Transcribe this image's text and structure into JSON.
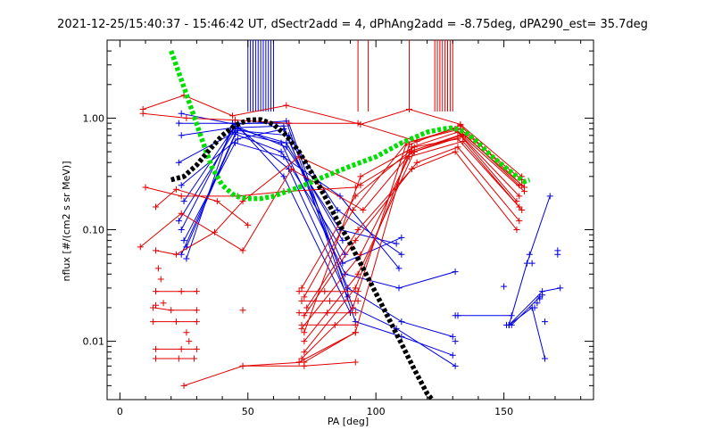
{
  "chart_data": {
    "type": "scatter",
    "title": "2021-12-25/15:40:37 - 15:46:42 UT, dSectr2add = 4, dPhAng2add = -8.75deg, dPA290_est=  35.7deg",
    "xlabel": "PA [deg]",
    "ylabel": "nflux [#/(cm2 s sr MeV)]",
    "xlim": [
      -5,
      185
    ],
    "ylim": [
      0.003,
      5.0
    ],
    "yscale": "log",
    "grid": false,
    "xticks": [
      0,
      50,
      100,
      150
    ],
    "xtick_labels": [
      "0",
      "50",
      "100",
      "150"
    ],
    "yticks": [
      0.01,
      0.1,
      1.0
    ],
    "ytick_labels": [
      "0.01",
      "0.10",
      "1.00"
    ],
    "colors": {
      "red": "#e00000",
      "blue": "#0000e0",
      "green": "#00e000",
      "black": "#000000"
    },
    "blue_markers": [
      50,
      51,
      52,
      53,
      54,
      55,
      56,
      57,
      58,
      59,
      60
    ],
    "red_markers": [
      93,
      97,
      113,
      123,
      124,
      125,
      126,
      127,
      128,
      129,
      130
    ],
    "series": [
      {
        "color": "blue",
        "style": "line+plus",
        "lines": [
          {
            "x": [
              24,
              45,
              65,
              92,
              110,
              130
            ],
            "y": [
              1.1,
              0.88,
              0.94,
              0.015,
              0.011,
              0.0075
            ]
          },
          {
            "x": [
              23,
              46,
              66,
              91,
              108,
              131
            ],
            "y": [
              0.9,
              0.9,
              0.9,
              0.02,
              0.013,
              0.006
            ]
          },
          {
            "x": [
              24,
              44,
              64,
              89,
              110,
              130
            ],
            "y": [
              0.7,
              0.82,
              0.85,
              0.03,
              0.015,
              0.011
            ]
          },
          {
            "x": [
              23,
              45,
              63,
              88,
              109,
              131
            ],
            "y": [
              0.4,
              0.75,
              0.6,
              0.04,
              0.03,
              0.042
            ]
          },
          {
            "x": [
              24,
              46,
              64,
              87,
              110
            ],
            "y": [
              0.25,
              0.65,
              0.8,
              0.05,
              0.085
            ]
          },
          {
            "x": [
              25,
              45,
              65,
              86,
              108
            ],
            "y": [
              0.18,
              0.85,
              0.55,
              0.1,
              0.075
            ]
          },
          {
            "x": [
              24,
              44,
              66,
              85,
              110
            ],
            "y": [
              0.1,
              0.78,
              0.7,
              0.15,
              0.06
            ]
          },
          {
            "x": [
              25,
              45,
              64,
              86,
              109
            ],
            "y": [
              0.08,
              0.6,
              0.45,
              0.2,
              0.045
            ]
          },
          {
            "x": [
              26,
              46,
              65,
              87
            ],
            "y": [
              0.07,
              0.8,
              0.6,
              0.08
            ]
          },
          {
            "x": [
              24,
              45,
              63,
              88
            ],
            "y": [
              0.06,
              0.72,
              0.5,
              0.06
            ]
          },
          {
            "x": [
              26,
              44,
              66,
              89
            ],
            "y": [
              0.055,
              0.9,
              0.35,
              0.025
            ]
          },
          {
            "x": [
              23,
              46,
              64,
              90
            ],
            "y": [
              0.12,
              0.85,
              0.3,
              0.018
            ]
          },
          {
            "x": [
              152,
              165,
              172
            ],
            "y": [
              0.014,
              0.028,
              0.03
            ]
          },
          {
            "x": [
              152,
              161,
              166
            ],
            "y": [
              0.014,
              0.02,
              0.007
            ]
          },
          {
            "x": [
              152,
              159,
              168
            ],
            "y": [
              0.014,
              0.05,
              0.2
            ]
          },
          {
            "x": [
              132,
              153
            ],
            "y": [
              0.017,
              0.017
            ]
          },
          {
            "x": [
              153,
              164
            ],
            "y": [
              0.014,
              0.025
            ]
          }
        ],
        "points": [
          {
            "x": [
              150,
              151,
              160,
              161,
              162,
              163,
              164,
              165,
              166,
              171,
              171,
              131,
              131
            ],
            "y": [
              0.031,
              0.014,
              0.06,
              0.05,
              0.02,
              0.022,
              0.024,
              0.026,
              0.015,
              0.06,
              0.065,
              0.01,
              0.017
            ]
          }
        ]
      },
      {
        "color": "red",
        "style": "line+plus",
        "lines": [
          {
            "x": [
              9,
              25,
              44,
              65,
              94,
              113,
              133,
              157
            ],
            "y": [
              1.2,
              1.6,
              1.05,
              1.3,
              0.88,
              1.2,
              0.88,
              0.3
            ]
          },
          {
            "x": [
              10,
              24,
              46,
              64,
              92,
              115,
              135,
              156
            ],
            "y": [
              0.24,
              0.2,
              0.2,
              0.22,
              0.24,
              0.5,
              0.7,
              0.25
            ]
          },
          {
            "x": [
              9,
              26,
              45,
              66,
              93,
              116
            ],
            "y": [
              1.1,
              1.0,
              0.96,
              0.9,
              0.9,
              0.62
            ]
          },
          {
            "x": [
              8,
              24,
              48,
              67,
              95,
              114
            ],
            "y": [
              0.07,
              0.14,
              0.065,
              0.35,
              0.15,
              0.5
            ]
          },
          {
            "x": [
              14,
              22,
              37,
              48,
              70,
              94
            ],
            "y": [
              0.065,
              0.06,
              0.095,
              0.18,
              0.45,
              0.25
            ]
          },
          {
            "x": [
              25,
              48,
              72,
              92
            ],
            "y": [
              0.004,
              0.006,
              0.0065,
              0.012
            ]
          },
          {
            "x": [
              48,
              72,
              92
            ],
            "y": [
              0.006,
              0.006,
              0.0065
            ]
          },
          {
            "x": [
              14,
              22,
              38,
              50
            ],
            "y": [
              0.16,
              0.23,
              0.18,
              0.11
            ]
          },
          {
            "x": [
              70,
              92,
              113,
              133,
              157
            ],
            "y": [
              0.0065,
              0.012,
              0.58,
              0.86,
              0.25
            ]
          },
          {
            "x": [
              71,
              91,
              112,
              131,
              158
            ],
            "y": [
              0.007,
              0.02,
              0.6,
              0.8,
              0.22
            ]
          },
          {
            "x": [
              72,
              92,
              114,
              132,
              156
            ],
            "y": [
              0.008,
              0.03,
              0.55,
              0.75,
              0.2
            ]
          },
          {
            "x": [
              72,
              93,
              115,
              133,
              155
            ],
            "y": [
              0.01,
              0.04,
              0.5,
              0.7,
              0.18
            ]
          },
          {
            "x": [
              71,
              94,
              113,
              134,
              157
            ],
            "y": [
              0.013,
              0.06,
              0.45,
              0.62,
              0.15
            ]
          },
          {
            "x": [
              72,
              92,
              116,
              132,
              156
            ],
            "y": [
              0.017,
              0.08,
              0.4,
              0.55,
              0.12
            ]
          },
          {
            "x": [
              73,
              93,
              114,
              131,
              155
            ],
            "y": [
              0.02,
              0.1,
              0.35,
              0.5,
              0.1
            ]
          },
          {
            "x": [
              72,
              91,
              112,
              133,
              157
            ],
            "y": [
              0.025,
              0.15,
              0.6,
              0.8,
              0.28
            ]
          },
          {
            "x": [
              71,
              92,
              113,
              134,
              158
            ],
            "y": [
              0.03,
              0.2,
              0.5,
              0.72,
              0.24
            ]
          },
          {
            "x": [
              72,
              94,
              115,
              132,
              156
            ],
            "y": [
              0.012,
              0.3,
              0.55,
              0.65,
              0.16
            ]
          },
          {
            "x": [
              14,
              24,
              30
            ],
            "y": [
              0.028,
              0.028,
              0.028
            ]
          },
          {
            "x": [
              13,
              20,
              30
            ],
            "y": [
              0.02,
              0.019,
              0.019
            ]
          },
          {
            "x": [
              13,
              22,
              30
            ],
            "y": [
              0.015,
              0.015,
              0.015
            ]
          },
          {
            "x": [
              14,
              24,
              30
            ],
            "y": [
              0.0085,
              0.0085,
              0.0085
            ]
          },
          {
            "x": [
              14,
              23,
              29
            ],
            "y": [
              0.007,
              0.007,
              0.007
            ]
          },
          {
            "x": [
              70,
              80,
              93
            ],
            "y": [
              0.028,
              0.028,
              0.028
            ]
          },
          {
            "x": [
              71,
              82,
              93
            ],
            "y": [
              0.023,
              0.023,
              0.023
            ]
          },
          {
            "x": [
              70,
              81,
              92
            ],
            "y": [
              0.018,
              0.018,
              0.018
            ]
          },
          {
            "x": [
              71,
              84,
              92
            ],
            "y": [
              0.014,
              0.014,
              0.014
            ]
          }
        ],
        "points": [
          {
            "x": [
              15,
              16,
              48,
              14,
              17,
              27,
              26
            ],
            "y": [
              0.045,
              0.036,
              0.019,
              0.021,
              0.022,
              0.01,
              0.012
            ]
          }
        ]
      },
      {
        "color": "green",
        "style": "dashed",
        "x": [
          20,
          24,
          28,
          32,
          36,
          40,
          45,
          50,
          55,
          60,
          70,
          80,
          90,
          100,
          110,
          120,
          126,
          130,
          135,
          140,
          145,
          150,
          155,
          158,
          160
        ],
        "y": [
          4.0,
          2.2,
          1.2,
          0.65,
          0.36,
          0.25,
          0.2,
          0.19,
          0.19,
          0.2,
          0.24,
          0.3,
          0.37,
          0.45,
          0.6,
          0.75,
          0.8,
          0.82,
          0.75,
          0.6,
          0.46,
          0.37,
          0.3,
          0.27,
          0.28
        ]
      },
      {
        "color": "black",
        "style": "dashed",
        "x": [
          20,
          25,
          30,
          35,
          40,
          45,
          50,
          55,
          60,
          65,
          70,
          75,
          80,
          85,
          90,
          95,
          100,
          105,
          110,
          115,
          120,
          122
        ],
        "y": [
          0.28,
          0.3,
          0.38,
          0.52,
          0.7,
          0.86,
          0.96,
          0.97,
          0.88,
          0.7,
          0.5,
          0.32,
          0.2,
          0.12,
          0.075,
          0.045,
          0.027,
          0.016,
          0.0095,
          0.0056,
          0.0034,
          0.003
        ]
      }
    ]
  }
}
